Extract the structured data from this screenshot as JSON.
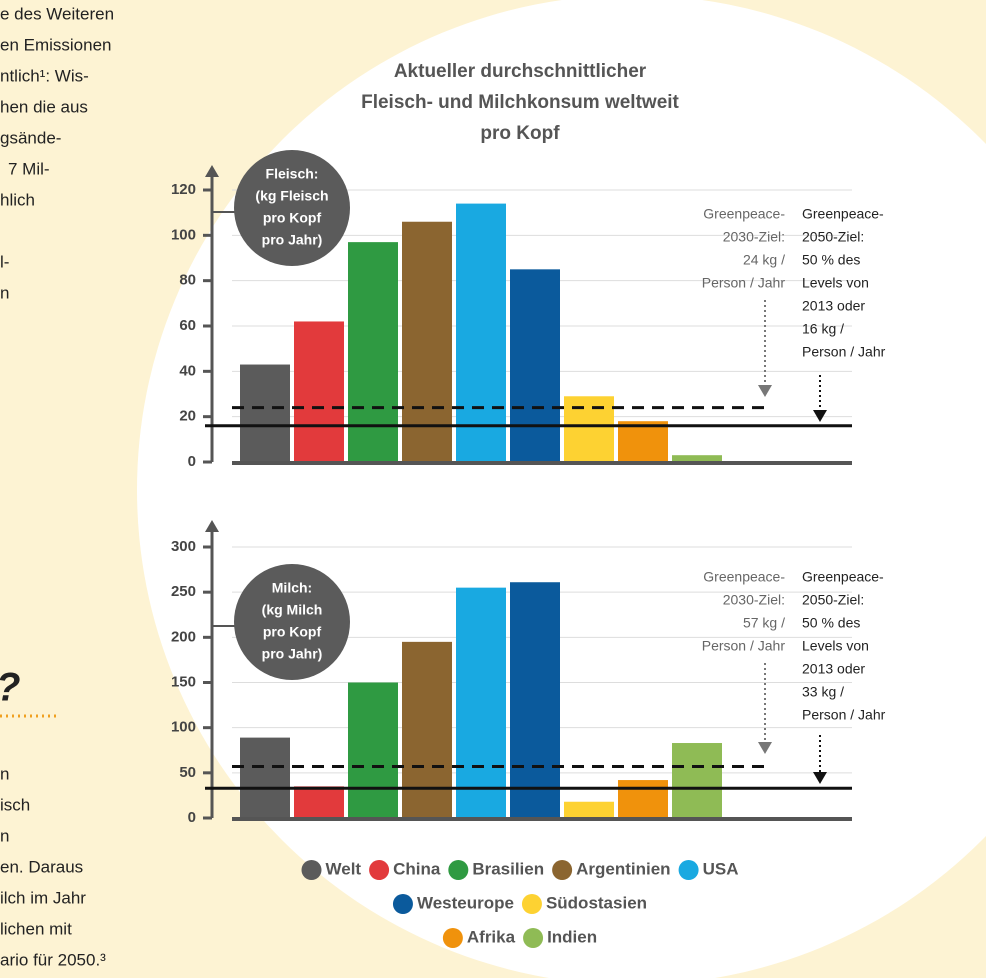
{
  "side_text": {
    "top": [
      "e des Weiteren",
      "en Emissionen",
      "ntlich¹: Wis-",
      "hen die aus",
      "gsände-",
      "7 Mil-",
      "hlich",
      "",
      "l-",
      "n"
    ],
    "heading": "?",
    "bottom": [
      "n",
      "isch",
      "n",
      "en. Daraus",
      "ilch im Jahr",
      "lichen mit",
      "ario für 2050.³"
    ]
  },
  "chart_data": [
    {
      "type": "bar",
      "title": [
        "Aktueller durchschnittlicher",
        "Fleisch- und Milchkonsum weltweit",
        "pro Kopf"
      ],
      "axis_label": [
        "Fleisch:",
        "(kg Fleisch",
        "pro Kopf",
        "pro Jahr)"
      ],
      "categories": [
        "Welt",
        "China",
        "Brasilien",
        "Argentinien",
        "USA",
        "Westeurope",
        "Südostasien",
        "Afrika",
        "Indien"
      ],
      "colors": [
        "#5b5b5b",
        "#e23a3c",
        "#2f9a42",
        "#8b6530",
        "#19a9e1",
        "#0b5a9c",
        "#fdd232",
        "#f0920c",
        "#8fbb55"
      ],
      "values": [
        43,
        62,
        97,
        106,
        114,
        85,
        29,
        18,
        3
      ],
      "ylim": [
        0,
        120
      ],
      "yticks": [
        0,
        20,
        40,
        60,
        80,
        100,
        120
      ],
      "grid": true,
      "reference_lines": [
        {
          "value": 24,
          "style": "dashed"
        },
        {
          "value": 16,
          "style": "solid"
        }
      ],
      "annotations": [
        {
          "lines": [
            "Greenpeace-",
            "2030-Ziel:",
            "24 kg /",
            "Person / Jahr"
          ]
        },
        {
          "lines": [
            "Greenpeace-",
            "2050-Ziel:",
            "50 % des",
            "Levels von",
            "2013 oder",
            "16 kg /",
            "Person / Jahr"
          ]
        }
      ]
    },
    {
      "type": "bar",
      "axis_label": [
        "Milch:",
        "(kg Milch",
        "pro Kopf",
        "pro Jahr)"
      ],
      "categories": [
        "Welt",
        "China",
        "Brasilien",
        "Argentinien",
        "USA",
        "Westeurope",
        "Südostasien",
        "Afrika",
        "Indien"
      ],
      "colors": [
        "#5b5b5b",
        "#e23a3c",
        "#2f9a42",
        "#8b6530",
        "#19a9e1",
        "#0b5a9c",
        "#fdd232",
        "#f0920c",
        "#8fbb55"
      ],
      "values": [
        89,
        35,
        150,
        195,
        255,
        261,
        18,
        42,
        83
      ],
      "ylim": [
        0,
        300
      ],
      "yticks": [
        0,
        50,
        100,
        150,
        200,
        250,
        300
      ],
      "grid": true,
      "reference_lines": [
        {
          "value": 57,
          "style": "dashed"
        },
        {
          "value": 33,
          "style": "solid"
        }
      ],
      "annotations": [
        {
          "lines": [
            "Greenpeace-",
            "2030-Ziel:",
            "57 kg /",
            "Person / Jahr"
          ]
        },
        {
          "lines": [
            "Greenpeace-",
            "2050-Ziel:",
            "50 % des",
            "Levels von",
            "2013 oder",
            "33 kg /",
            "Person / Jahr"
          ]
        }
      ]
    }
  ]
}
